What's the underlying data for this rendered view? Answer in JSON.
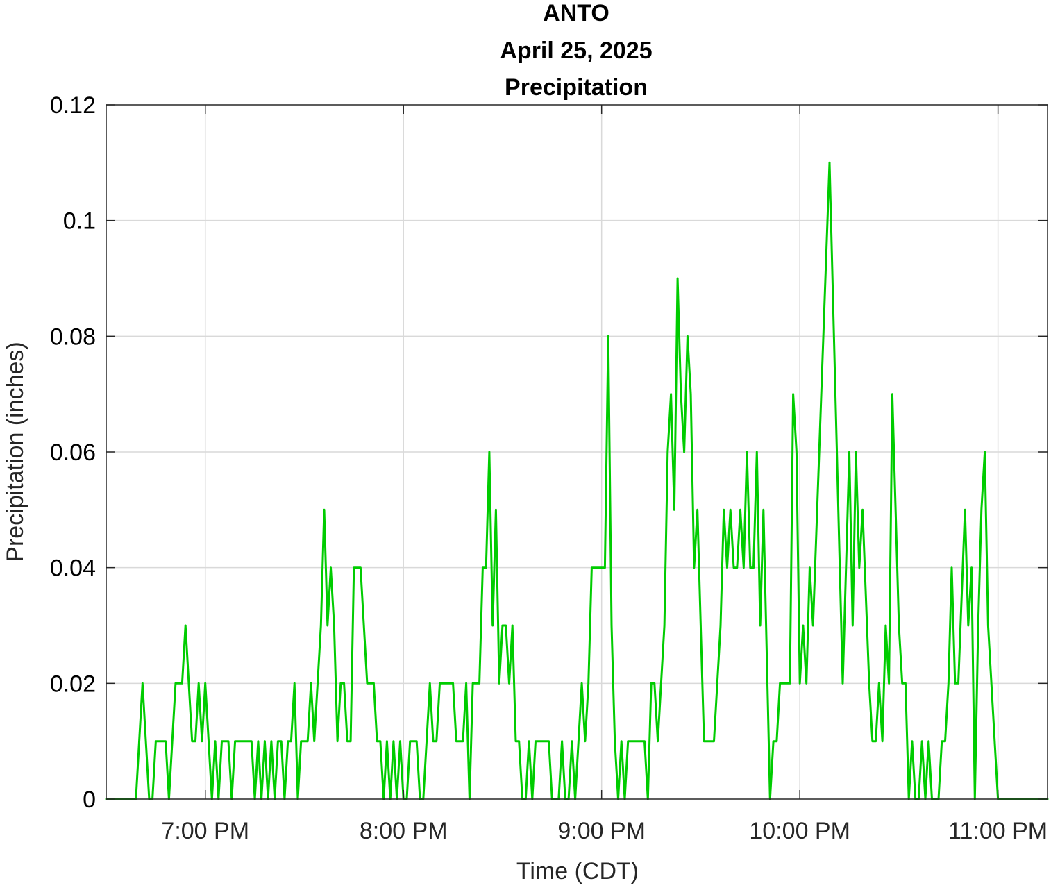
{
  "chart_data": {
    "type": "line",
    "title_lines": [
      "ANTO",
      "April 25, 2025",
      "Precipitation"
    ],
    "xlabel": "Time (CDT)",
    "ylabel": "Precipitation (inches)",
    "xlim": [
      "18:30",
      "23:15"
    ],
    "ylim": [
      0,
      0.12
    ],
    "grid": true,
    "x_ticks": [
      {
        "time": "19:00",
        "label": "7:00 PM"
      },
      {
        "time": "20:00",
        "label": "8:00 PM"
      },
      {
        "time": "21:00",
        "label": "9:00 PM"
      },
      {
        "time": "22:00",
        "label": "10:00 PM"
      },
      {
        "time": "23:00",
        "label": "11:00 PM"
      }
    ],
    "y_ticks": [
      {
        "value": 0,
        "label": "0"
      },
      {
        "value": 0.02,
        "label": "0.02"
      },
      {
        "value": 0.04,
        "label": "0.04"
      },
      {
        "value": 0.06,
        "label": "0.06"
      },
      {
        "value": 0.08,
        "label": "0.08"
      },
      {
        "value": 0.1,
        "label": "0.1"
      },
      {
        "value": 0.12,
        "label": "0.12"
      }
    ],
    "series": [
      {
        "color": "#00cc00",
        "points": [
          [
            "18:30",
            0
          ],
          [
            "18:39",
            0
          ],
          [
            "18:41",
            0.02
          ],
          [
            "18:43",
            0
          ],
          [
            "18:44",
            0
          ],
          [
            "18:45",
            0.01
          ],
          [
            "18:48",
            0.01
          ],
          [
            "18:49",
            0
          ],
          [
            "18:51",
            0.02
          ],
          [
            "18:53",
            0.02
          ],
          [
            "18:54",
            0.03
          ],
          [
            "18:56",
            0.01
          ],
          [
            "18:57",
            0.01
          ],
          [
            "18:58",
            0.02
          ],
          [
            "18:59",
            0.01
          ],
          [
            "19:00",
            0.02
          ],
          [
            "19:02",
            0
          ],
          [
            "19:03",
            0.01
          ],
          [
            "19:04",
            0
          ],
          [
            "19:05",
            0.01
          ],
          [
            "19:07",
            0.01
          ],
          [
            "19:08",
            0
          ],
          [
            "19:09",
            0.01
          ],
          [
            "19:14",
            0.01
          ],
          [
            "19:15",
            0
          ],
          [
            "19:16",
            0.01
          ],
          [
            "19:17",
            0
          ],
          [
            "19:18",
            0.01
          ],
          [
            "19:19",
            0
          ],
          [
            "19:20",
            0.01
          ],
          [
            "19:21",
            0
          ],
          [
            "19:22",
            0.01
          ],
          [
            "19:23",
            0.01
          ],
          [
            "19:24",
            0
          ],
          [
            "19:25",
            0.01
          ],
          [
            "19:26",
            0.01
          ],
          [
            "19:27",
            0.02
          ],
          [
            "19:28",
            0
          ],
          [
            "19:29",
            0.01
          ],
          [
            "19:31",
            0.01
          ],
          [
            "19:32",
            0.02
          ],
          [
            "19:33",
            0.01
          ],
          [
            "19:35",
            0.03
          ],
          [
            "19:36",
            0.05
          ],
          [
            "19:37",
            0.03
          ],
          [
            "19:38",
            0.04
          ],
          [
            "19:39",
            0.03
          ],
          [
            "19:40",
            0.01
          ],
          [
            "19:41",
            0.02
          ],
          [
            "19:42",
            0.02
          ],
          [
            "19:43",
            0.01
          ],
          [
            "19:44",
            0.01
          ],
          [
            "19:45",
            0.04
          ],
          [
            "19:47",
            0.04
          ],
          [
            "19:49",
            0.02
          ],
          [
            "19:51",
            0.02
          ],
          [
            "19:52",
            0.01
          ],
          [
            "19:53",
            0.01
          ],
          [
            "19:54",
            0
          ],
          [
            "19:55",
            0.01
          ],
          [
            "19:56",
            0
          ],
          [
            "19:57",
            0.01
          ],
          [
            "19:58",
            0
          ],
          [
            "19:59",
            0.01
          ],
          [
            "20:00",
            0
          ],
          [
            "20:01",
            0
          ],
          [
            "20:02",
            0.01
          ],
          [
            "20:04",
            0.01
          ],
          [
            "20:05",
            0
          ],
          [
            "20:06",
            0
          ],
          [
            "20:08",
            0.02
          ],
          [
            "20:09",
            0.01
          ],
          [
            "20:10",
            0.01
          ],
          [
            "20:11",
            0.02
          ],
          [
            "20:15",
            0.02
          ],
          [
            "20:16",
            0.01
          ],
          [
            "20:18",
            0.01
          ],
          [
            "20:19",
            0.02
          ],
          [
            "20:20",
            0
          ],
          [
            "20:21",
            0.02
          ],
          [
            "20:23",
            0.02
          ],
          [
            "20:24",
            0.04
          ],
          [
            "20:25",
            0.04
          ],
          [
            "20:26",
            0.06
          ],
          [
            "20:27",
            0.03
          ],
          [
            "20:28",
            0.05
          ],
          [
            "20:29",
            0.02
          ],
          [
            "20:30",
            0.03
          ],
          [
            "20:31",
            0.03
          ],
          [
            "20:32",
            0.02
          ],
          [
            "20:33",
            0.03
          ],
          [
            "20:34",
            0.01
          ],
          [
            "20:35",
            0.01
          ],
          [
            "20:36",
            0
          ],
          [
            "20:37",
            0
          ],
          [
            "20:38",
            0.01
          ],
          [
            "20:39",
            0
          ],
          [
            "20:40",
            0.01
          ],
          [
            "20:44",
            0.01
          ],
          [
            "20:45",
            0
          ],
          [
            "20:47",
            0
          ],
          [
            "20:48",
            0.01
          ],
          [
            "20:49",
            0
          ],
          [
            "20:50",
            0
          ],
          [
            "20:51",
            0.01
          ],
          [
            "20:52",
            0
          ],
          [
            "20:54",
            0.02
          ],
          [
            "20:55",
            0.01
          ],
          [
            "20:56",
            0.02
          ],
          [
            "20:57",
            0.04
          ],
          [
            "21:01",
            0.04
          ],
          [
            "21:02",
            0.08
          ],
          [
            "21:03",
            0.03
          ],
          [
            "21:04",
            0.01
          ],
          [
            "21:05",
            0
          ],
          [
            "21:06",
            0.01
          ],
          [
            "21:07",
            0
          ],
          [
            "21:08",
            0.01
          ],
          [
            "21:13",
            0.01
          ],
          [
            "21:14",
            0
          ],
          [
            "21:15",
            0.02
          ],
          [
            "21:16",
            0.02
          ],
          [
            "21:17",
            0.01
          ],
          [
            "21:19",
            0.03
          ],
          [
            "21:20",
            0.06
          ],
          [
            "21:21",
            0.07
          ],
          [
            "21:22",
            0.05
          ],
          [
            "21:23",
            0.09
          ],
          [
            "21:24",
            0.07
          ],
          [
            "21:25",
            0.06
          ],
          [
            "21:26",
            0.08
          ],
          [
            "21:27",
            0.07
          ],
          [
            "21:28",
            0.04
          ],
          [
            "21:29",
            0.05
          ],
          [
            "21:30",
            0.03
          ],
          [
            "21:31",
            0.01
          ],
          [
            "21:34",
            0.01
          ],
          [
            "21:36",
            0.03
          ],
          [
            "21:37",
            0.05
          ],
          [
            "21:38",
            0.04
          ],
          [
            "21:39",
            0.05
          ],
          [
            "21:40",
            0.04
          ],
          [
            "21:41",
            0.04
          ],
          [
            "21:42",
            0.05
          ],
          [
            "21:43",
            0.04
          ],
          [
            "21:44",
            0.06
          ],
          [
            "21:45",
            0.04
          ],
          [
            "21:46",
            0.04
          ],
          [
            "21:47",
            0.06
          ],
          [
            "21:48",
            0.03
          ],
          [
            "21:49",
            0.05
          ],
          [
            "21:51",
            0
          ],
          [
            "21:52",
            0.01
          ],
          [
            "21:53",
            0.01
          ],
          [
            "21:54",
            0.02
          ],
          [
            "21:57",
            0.02
          ],
          [
            "21:58",
            0.07
          ],
          [
            "21:59",
            0.06
          ],
          [
            "22:00",
            0.02
          ],
          [
            "22:01",
            0.03
          ],
          [
            "22:02",
            0.02
          ],
          [
            "22:03",
            0.04
          ],
          [
            "22:04",
            0.03
          ],
          [
            "22:09",
            0.11
          ],
          [
            "22:13",
            0.02
          ],
          [
            "22:15",
            0.06
          ],
          [
            "22:16",
            0.03
          ],
          [
            "22:17",
            0.06
          ],
          [
            "22:18",
            0.04
          ],
          [
            "22:19",
            0.05
          ],
          [
            "22:21",
            0.02
          ],
          [
            "22:22",
            0.01
          ],
          [
            "22:23",
            0.01
          ],
          [
            "22:24",
            0.02
          ],
          [
            "22:25",
            0.01
          ],
          [
            "22:26",
            0.03
          ],
          [
            "22:27",
            0.02
          ],
          [
            "22:28",
            0.07
          ],
          [
            "22:30",
            0.03
          ],
          [
            "22:31",
            0.02
          ],
          [
            "22:32",
            0.02
          ],
          [
            "22:33",
            0
          ],
          [
            "22:34",
            0.01
          ],
          [
            "22:35",
            0
          ],
          [
            "22:36",
            0
          ],
          [
            "22:37",
            0.01
          ],
          [
            "22:38",
            0
          ],
          [
            "22:39",
            0.01
          ],
          [
            "22:40",
            0
          ],
          [
            "22:42",
            0
          ],
          [
            "22:43",
            0.01
          ],
          [
            "22:44",
            0.01
          ],
          [
            "22:45",
            0.02
          ],
          [
            "22:46",
            0.04
          ],
          [
            "22:47",
            0.02
          ],
          [
            "22:48",
            0.02
          ],
          [
            "22:50",
            0.05
          ],
          [
            "22:51",
            0.03
          ],
          [
            "22:52",
            0.04
          ],
          [
            "22:53",
            0
          ],
          [
            "22:54",
            0.03
          ],
          [
            "22:55",
            0.05
          ],
          [
            "22:56",
            0.06
          ],
          [
            "22:57",
            0.03
          ],
          [
            "23:00",
            0
          ],
          [
            "23:15",
            0
          ]
        ]
      }
    ]
  }
}
